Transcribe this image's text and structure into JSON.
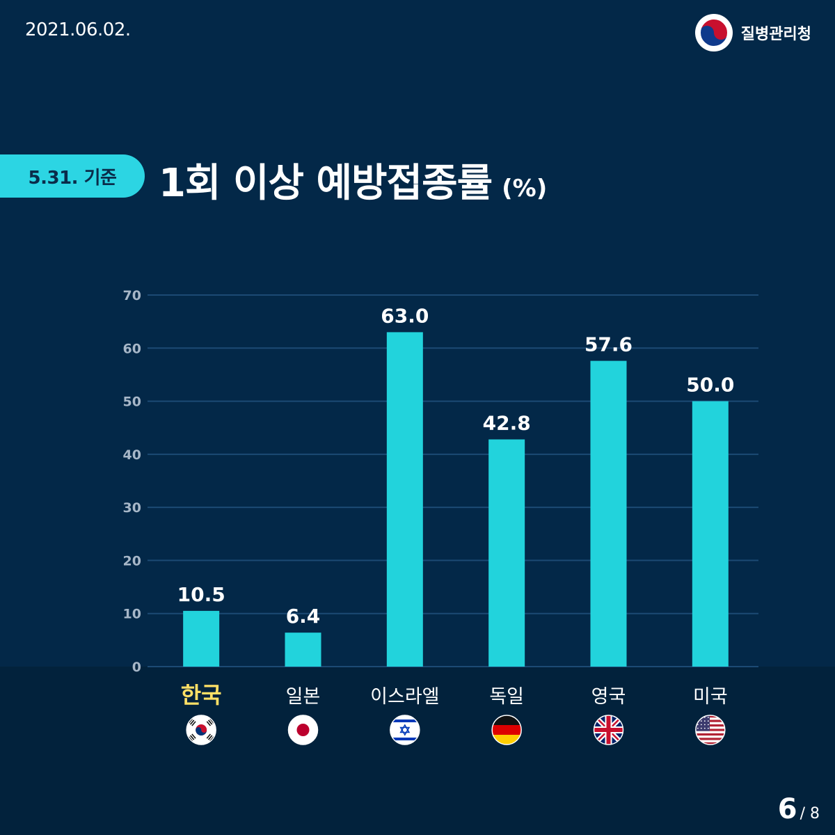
{
  "header": {
    "date": "2021.06.02.",
    "org_name": "질병관리청",
    "org_logo_icon": "taegeuk-logo-icon"
  },
  "badge": {
    "label": "5.31. 기준"
  },
  "title": {
    "main": "1회 이상 예방접종률",
    "unit": "(%)"
  },
  "pagination": {
    "current": "6",
    "total": "/ 8"
  },
  "colors": {
    "background": "#032848",
    "bar": "#22d3dc",
    "grid": "#1c4a74",
    "tick": "#a7b7c8",
    "highlight": "#ffe066",
    "badge": "#2cd5e3"
  },
  "chart_data": {
    "type": "bar",
    "title": "1회 이상 예방접종률",
    "ylabel": "%",
    "ylim": [
      0,
      70
    ],
    "yticks": [
      0,
      10,
      20,
      30,
      40,
      50,
      60,
      70
    ],
    "grid": true,
    "categories": [
      "한국",
      "일본",
      "이스라엘",
      "독일",
      "영국",
      "미국"
    ],
    "values": [
      10.5,
      6.4,
      63.0,
      42.8,
      57.6,
      50.0
    ],
    "value_labels": [
      "10.5",
      "6.4",
      "63.0",
      "42.8",
      "57.6",
      "50.0"
    ],
    "highlight_category": "한국",
    "flags": [
      "south-korea-flag-icon",
      "japan-flag-icon",
      "israel-flag-icon",
      "germany-flag-icon",
      "uk-flag-icon",
      "usa-flag-icon"
    ]
  }
}
